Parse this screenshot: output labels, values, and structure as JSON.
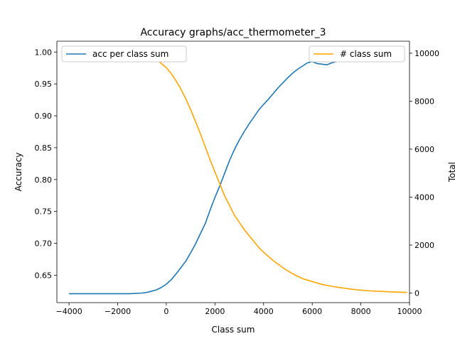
{
  "chart_data": {
    "type": "line",
    "title": "Accuracy graphs/acc_thermometer_3",
    "xlabel": "Class sum",
    "ylabel_left": "Accuracy",
    "ylabel_right": "Total",
    "xlim": [
      -4500,
      10000
    ],
    "ylim_left": [
      0.607,
      1.017
    ],
    "ylim_right": [
      -400,
      10500
    ],
    "x_ticks": [
      -4000,
      -2000,
      0,
      2000,
      4000,
      6000,
      8000,
      10000
    ],
    "y_left_ticks": [
      0.65,
      0.7,
      0.75,
      0.8,
      0.85,
      0.9,
      0.95,
      1.0
    ],
    "y_right_ticks": [
      0,
      2000,
      4000,
      6000,
      8000,
      10000
    ],
    "grid": false,
    "legends": [
      {
        "position": "top-left",
        "entries": [
          "acc per class sum"
        ]
      },
      {
        "position": "top-right",
        "entries": [
          "# class sum"
        ]
      }
    ],
    "series": [
      {
        "name": "acc per class sum",
        "axis": "left",
        "color": "#1f77b4",
        "x": [
          -4000,
          -3000,
          -2000,
          -1500,
          -1000,
          -800,
          -600,
          -400,
          -200,
          0,
          200,
          400,
          600,
          800,
          1000,
          1200,
          1400,
          1600,
          1800,
          2000,
          2200,
          2400,
          2600,
          2800,
          3000,
          3200,
          3400,
          3600,
          3800,
          4000,
          4200,
          4400,
          4600,
          4800,
          5000,
          5200,
          5400,
          5600,
          5800,
          6000,
          6200,
          6400,
          6600,
          6800,
          7000,
          7200,
          7400,
          7600,
          7800,
          8000,
          8200,
          8400,
          8600,
          8700
        ],
        "y": [
          0.621,
          0.621,
          0.621,
          0.621,
          0.622,
          0.623,
          0.625,
          0.627,
          0.631,
          0.636,
          0.643,
          0.652,
          0.662,
          0.672,
          0.685,
          0.699,
          0.715,
          0.731,
          0.752,
          0.772,
          0.79,
          0.81,
          0.83,
          0.847,
          0.862,
          0.875,
          0.887,
          0.898,
          0.909,
          0.918,
          0.926,
          0.935,
          0.944,
          0.952,
          0.96,
          0.967,
          0.973,
          0.978,
          0.983,
          0.985,
          0.982,
          0.981,
          0.98,
          0.983,
          0.985,
          0.992,
          0.994,
          0.995,
          0.994,
          0.993,
          0.992,
          0.99,
          0.987,
          0.986
        ]
      },
      {
        "name": "# class sum",
        "axis": "right",
        "color": "#ffa500",
        "x": [
          -4000,
          -3000,
          -2000,
          -1500,
          -1000,
          -600,
          -300,
          0,
          200,
          400,
          600,
          800,
          1000,
          1200,
          1400,
          1600,
          1800,
          2000,
          2200,
          2400,
          2600,
          2800,
          3000,
          3200,
          3400,
          3600,
          3800,
          4000,
          4400,
          4800,
          5200,
          5600,
          6000,
          6400,
          6800,
          7200,
          7600,
          8000,
          8400,
          8800,
          9200,
          9600,
          9900
        ],
        "y": [
          10000,
          10000,
          10000,
          9950,
          9900,
          9800,
          9650,
          9400,
          9150,
          8850,
          8500,
          8100,
          7650,
          7150,
          6650,
          6100,
          5550,
          5050,
          4550,
          4050,
          3650,
          3250,
          2950,
          2650,
          2400,
          2150,
          1900,
          1700,
          1350,
          1050,
          800,
          600,
          480,
          360,
          280,
          220,
          160,
          120,
          90,
          70,
          50,
          35,
          25
        ]
      }
    ]
  }
}
